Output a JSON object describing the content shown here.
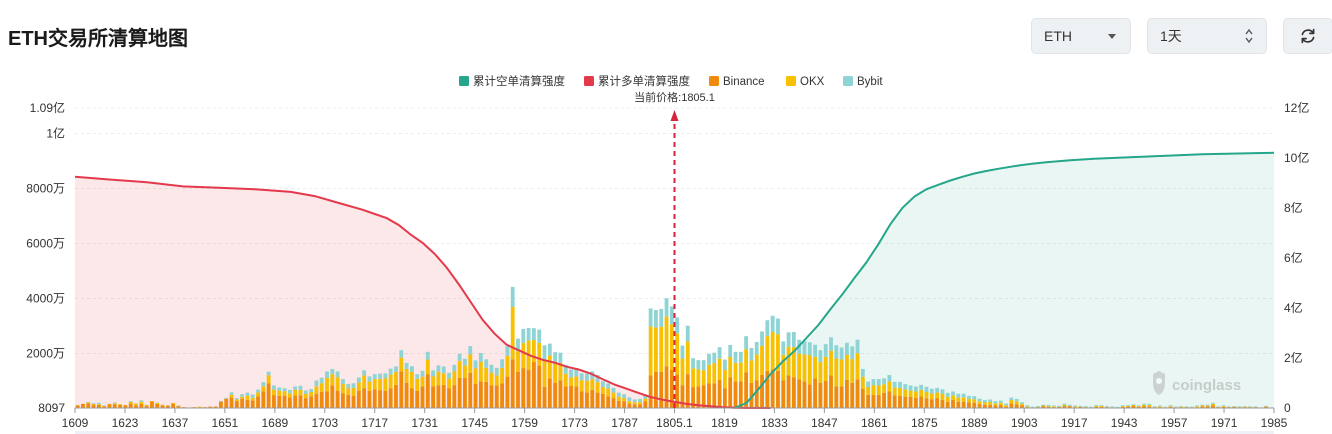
{
  "header": {
    "title": "ETH交易所清算地图",
    "coin_select": "ETH",
    "period_select": "1天",
    "refresh_icon": "refresh-icon"
  },
  "watermark": "coinglass",
  "chart_data": {
    "type": "bar",
    "stacked": true,
    "current_price_label": "当前价格:1805.1",
    "current_price": 1805.1,
    "x_tick_labels": [
      "1609",
      "1623",
      "1637",
      "1651",
      "1689",
      "1703",
      "1717",
      "1731",
      "1745",
      "1759",
      "1773",
      "1787",
      "1805.1",
      "1819",
      "1833",
      "1847",
      "1861",
      "1875",
      "1889",
      "1903",
      "1917",
      "1943",
      "1957",
      "1971",
      "1985"
    ],
    "y_left_ticks": [
      "8097",
      "2000万",
      "4000万",
      "6000万",
      "8000万",
      "1亿",
      "1.09亿"
    ],
    "y_left_values": [
      0,
      20000000,
      40000000,
      60000000,
      80000000,
      100000000,
      109000000
    ],
    "y_right_ticks": [
      "0",
      "2亿",
      "4亿",
      "6亿",
      "8亿",
      "10亿",
      "12亿"
    ],
    "y_right_values": [
      0,
      200000000,
      400000000,
      600000000,
      800000000,
      1000000000,
      1200000000
    ],
    "legend": [
      {
        "name": "累计空单清算强度",
        "color": "#26a68a"
      },
      {
        "name": "累计多单清算强度",
        "color": "#e4394b"
      },
      {
        "name": "Binance",
        "color": "#f08a0c"
      },
      {
        "name": "OKX",
        "color": "#f7c000"
      },
      {
        "name": "Bybit",
        "color": "#8fd4d4"
      }
    ],
    "bars": {
      "units": "USD",
      "binance": [
        1000000,
        1500000,
        1700000,
        1200000,
        1100000,
        500000,
        1400000,
        1300000,
        1100000,
        1000000,
        1600000,
        1000000,
        1500000,
        700000,
        2400000,
        1500000,
        1000000,
        800000,
        1600000,
        700000,
        300000,
        100000,
        300000,
        200000,
        300000,
        500000,
        500000,
        2300000,
        3300000,
        3900000,
        2500000,
        3400000,
        3000000,
        2700000,
        4200000,
        6000000,
        8900000,
        4700000,
        4400000,
        4500000,
        3800000,
        4600000,
        4600000,
        3600000,
        4200000,
        5200000,
        5900000,
        6100000,
        8200000,
        6300000,
        5400000,
        4700000,
        4500000,
        6300000,
        7100000,
        6300000,
        6800000,
        6500000,
        6200000,
        7100000,
        8400000,
        13300000,
        9100000,
        7200000,
        6200000,
        7800000,
        12300000,
        7900000,
        8200000,
        8400000,
        7200000,
        8300000,
        10900000,
        10900000,
        12800000,
        8800000,
        9700000,
        9500000,
        8300000,
        8200000,
        8900000,
        11400000,
        17700000,
        13100000,
        14500000,
        13800000,
        16700000,
        15400000,
        7700000,
        10800000,
        9200000,
        10100000,
        7800000,
        8000000,
        7800000,
        6100000,
        5700000,
        6600000,
        5600000,
        5200000,
        4200000,
        3600000,
        2600000,
        2400000,
        1600000,
        1300000,
        1400000,
        2500000,
        11900000,
        13200000,
        13100000,
        15200000,
        13800000,
        12200000,
        8300000,
        12300000,
        7600000,
        7800000,
        8300000,
        8900000,
        9000000,
        10200000,
        7200000,
        11200000,
        9600000,
        9700000,
        12900000,
        9100000,
        10000000,
        12000000,
        13500000,
        14100000,
        13500000,
        10100000,
        11800000,
        11200000,
        10400000,
        9700000,
        8600000,
        10700000,
        9100000,
        9800000,
        11800000,
        7900000,
        7900000,
        10200000,
        9100000,
        10400000,
        6900000,
        4800000,
        4800000,
        4700000,
        5500000,
        6000000,
        4600000,
        4400000,
        4100000,
        4000000,
        3700000,
        4200000,
        3500000,
        3200000,
        3600000,
        3000000,
        2300000,
        2900000,
        2300000,
        2300000,
        2100000,
        1900000,
        1500000,
        1200000,
        1200000,
        1000000,
        1100000,
        500000,
        1700000,
        1400000,
        900000,
        300000,
        100000,
        300000,
        700000,
        400000,
        300000,
        400000,
        700000,
        700000,
        300000,
        400000,
        300000,
        100000,
        400000,
        400000,
        300000,
        200000,
        100000,
        400000,
        500000,
        800000,
        400000,
        700000,
        600000,
        300000,
        300000,
        200000,
        400000,
        200000,
        300000,
        300000,
        200000,
        300000,
        600000,
        600000,
        1000000,
        300000,
        400000,
        300000,
        400000,
        300000,
        300000,
        300000,
        300000,
        100000,
        500000,
        100000
      ],
      "okx": [
        0,
        0,
        300000,
        300000,
        300000,
        300000,
        100000,
        400000,
        300000,
        100000,
        600000,
        600000,
        800000,
        400000,
        100000,
        400000,
        200000,
        200000,
        200000,
        200000,
        0,
        0,
        0,
        300000,
        0,
        0,
        100000,
        100000,
        100000,
        900000,
        600000,
        700000,
        1500000,
        1000000,
        1400000,
        1900000,
        3000000,
        2000000,
        1900000,
        1600000,
        1500000,
        2000000,
        2000000,
        1500000,
        1600000,
        2700000,
        3100000,
        4800000,
        4100000,
        4900000,
        3300000,
        2400000,
        2800000,
        3000000,
        4700000,
        3300000,
        3700000,
        4100000,
        4600000,
        5000000,
        4700000,
        5000000,
        5100000,
        5900000,
        4400000,
        3600000,
        5300000,
        3600000,
        5000000,
        4200000,
        3500000,
        5000000,
        6200000,
        4500000,
        6700000,
        5600000,
        7100000,
        5100000,
        4500000,
        3600000,
        5700000,
        7500000,
        19000000,
        7500000,
        9100000,
        10800000,
        8000000,
        8300000,
        9600000,
        8300000,
        6900000,
        6300000,
        4600000,
        3100000,
        3700000,
        4000000,
        4200000,
        3900000,
        3800000,
        2400000,
        2800000,
        2000000,
        1500000,
        1200000,
        900000,
        800000,
        700000,
        900000,
        17800000,
        16000000,
        16400000,
        18000000,
        16600000,
        14900000,
        9700000,
        11900000,
        6800000,
        6200000,
        5400000,
        6800000,
        7300000,
        7700000,
        6600000,
        7300000,
        6800000,
        6800000,
        8500000,
        8200000,
        9400000,
        10600000,
        12600000,
        13500000,
        13300000,
        9200000,
        10500000,
        10900000,
        9300000,
        9800000,
        10500000,
        7900000,
        7600000,
        8800000,
        9000000,
        10100000,
        9700000,
        9100000,
        8600000,
        9500000,
        4400000,
        2800000,
        3500000,
        3500000,
        3100000,
        3600000,
        2800000,
        2900000,
        2600000,
        2300000,
        2300000,
        2400000,
        2300000,
        2100000,
        2000000,
        2200000,
        1700000,
        1700000,
        1500000,
        1600000,
        1200000,
        1300000,
        900000,
        800000,
        1000000,
        700000,
        800000,
        500000,
        1200000,
        1000000,
        600000,
        300000,
        100000,
        100000,
        200000,
        300000,
        300000,
        100000,
        500000,
        100000,
        300000,
        100000,
        100000,
        100000,
        400000,
        400000,
        100000,
        100000,
        100000,
        300000,
        300000,
        300000,
        300000,
        500000,
        500000,
        100000,
        300000,
        100000,
        300000,
        100000,
        200000,
        100000,
        100000,
        300000,
        300000,
        300000,
        500000,
        100000,
        300000,
        100000,
        100000,
        100000,
        200000,
        100000,
        100000,
        0,
        100000,
        0
      ],
      "bybit": [
        0,
        0,
        200000,
        300000,
        500000,
        200000,
        0,
        300000,
        0,
        0,
        300000,
        100000,
        500000,
        100000,
        0,
        100000,
        0,
        100000,
        0,
        0,
        0,
        0,
        0,
        0,
        0,
        0,
        0,
        200000,
        300000,
        900000,
        500000,
        900000,
        1100000,
        1200000,
        1100000,
        1500000,
        1300000,
        1500000,
        1200000,
        1100000,
        1300000,
        1200000,
        1500000,
        1300000,
        1100000,
        2100000,
        2000000,
        2400000,
        1900000,
        2100000,
        1800000,
        1600000,
        1700000,
        1800000,
        1900000,
        1900000,
        1800000,
        1900000,
        1800000,
        2200000,
        2000000,
        2700000,
        2200000,
        2100000,
        1700000,
        2100000,
        2800000,
        2200000,
        2300000,
        2500000,
        2100000,
        2400000,
        2600000,
        2500000,
        3000000,
        2900000,
        3200000,
        3100000,
        2900000,
        2800000,
        3100000,
        3600000,
        7300000,
        4600000,
        5100000,
        4500000,
        4300000,
        4800000,
        5500000,
        4300000,
        4200000,
        3700000,
        3300000,
        2900000,
        3000000,
        2500000,
        2600000,
        2800000,
        2600000,
        2100000,
        1900000,
        1700000,
        1500000,
        1400000,
        1400000,
        1000000,
        1200000,
        1100000,
        6500000,
        6400000,
        6500000,
        6700000,
        6500000,
        5800000,
        4700000,
        5700000,
        3700000,
        3400000,
        3700000,
        4000000,
        3800000,
        4200000,
        3800000,
        4400000,
        4000000,
        3900000,
        4700000,
        4500000,
        4600000,
        5200000,
        5800000,
        5900000,
        5700000,
        4900000,
        5200000,
        5500000,
        5100000,
        4800000,
        4800000,
        4400000,
        4300000,
        4600000,
        4900000,
        4800000,
        4400000,
        4400000,
        4700000,
        4900000,
        2900000,
        2000000,
        2200000,
        2300000,
        2200000,
        2400000,
        2100000,
        2200000,
        2000000,
        1900000,
        1800000,
        1800000,
        1900000,
        1700000,
        1700000,
        1600000,
        1500000,
        1400000,
        1400000,
        1300000,
        1100000,
        1100000,
        1000000,
        900000,
        900000,
        800000,
        800000,
        600000,
        900000,
        900000,
        600000,
        400000,
        300000,
        300000,
        300000,
        400000,
        300000,
        300000,
        400000,
        400000,
        300000,
        300000,
        300000,
        300000,
        300000,
        300000,
        300000,
        300000,
        200000,
        300000,
        300000,
        300000,
        300000,
        400000,
        400000,
        200000,
        300000,
        200000,
        300000,
        200000,
        200000,
        200000,
        200000,
        300000,
        300000,
        300000,
        400000,
        200000,
        300000,
        200000,
        200000,
        200000,
        200000,
        200000,
        200000,
        100000,
        200000,
        100000
      ]
    },
    "cumulative_long": {
      "axis": "left",
      "x_positions_pct": [
        0,
        3,
        6,
        9,
        12,
        15,
        18,
        20,
        22,
        24,
        25,
        26,
        27,
        28,
        29,
        30,
        31,
        32,
        33,
        34,
        35,
        36,
        37,
        38,
        39,
        40,
        41,
        42,
        43,
        44,
        45,
        46,
        47,
        48,
        49,
        50,
        51,
        52,
        53,
        54,
        55,
        56,
        57,
        58,
        59,
        60,
        61,
        62,
        63,
        64,
        65,
        66,
        67,
        68,
        69,
        70,
        71,
        72,
        73,
        74,
        75,
        76,
        77,
        78,
        79,
        80,
        81,
        82,
        83,
        84,
        85,
        86,
        87,
        88,
        89,
        90,
        91,
        92,
        93,
        94,
        95,
        96,
        97,
        98,
        99,
        100
      ],
      "values": [
        84000000,
        83000000,
        82000000,
        80500000,
        80000000,
        79500000,
        78500000,
        77000000,
        74500000,
        72000000,
        70500000,
        69000000,
        66500000,
        63000000,
        60000000,
        56000000,
        51000000,
        45000000,
        38500000,
        32000000,
        27000000,
        23000000,
        21000000,
        19000000,
        17500000,
        16500000,
        15000000,
        14000000,
        12500000,
        10500000,
        8500000,
        7000000,
        5500000,
        4000000,
        3000000,
        2200000,
        1500000,
        1000000,
        600000,
        300000,
        100000,
        0,
        0,
        0,
        0,
        0,
        0,
        0,
        0,
        0,
        0,
        0,
        0,
        0,
        0,
        0,
        0,
        0,
        0,
        0,
        0,
        0,
        0,
        0,
        0,
        0,
        0,
        0,
        0,
        0,
        0,
        0,
        0,
        0,
        0,
        0,
        0,
        0,
        0,
        0,
        0,
        0,
        0,
        0,
        0,
        0
      ]
    },
    "cumulative_short": {
      "axis": "right",
      "values": [
        0,
        0,
        0,
        0,
        0,
        0,
        0,
        0,
        0,
        0,
        0,
        0,
        0,
        0,
        0,
        0,
        0,
        0,
        0,
        0,
        0,
        0,
        0,
        0,
        0,
        0,
        0,
        0,
        0,
        0,
        0,
        0,
        0,
        0,
        0,
        0,
        0,
        0,
        0,
        0,
        0,
        20000000,
        75000000,
        135000000,
        185000000,
        228000000,
        280000000,
        332000000,
        395000000,
        455000000,
        520000000,
        582000000,
        655000000,
        735000000,
        800000000,
        845000000,
        875000000,
        893000000,
        910000000,
        925000000,
        938000000,
        948000000,
        957000000,
        965000000,
        972000000,
        978000000,
        983000000,
        987000000,
        991000000,
        994000000,
        997000000,
        999000000,
        1001000000,
        1003000000,
        1005000000,
        1007000000,
        1009000000,
        1011000000,
        1013000000,
        1015000000,
        1016000000,
        1017000000,
        1018000000,
        1019000000,
        1020000000,
        1021000000
      ]
    }
  }
}
